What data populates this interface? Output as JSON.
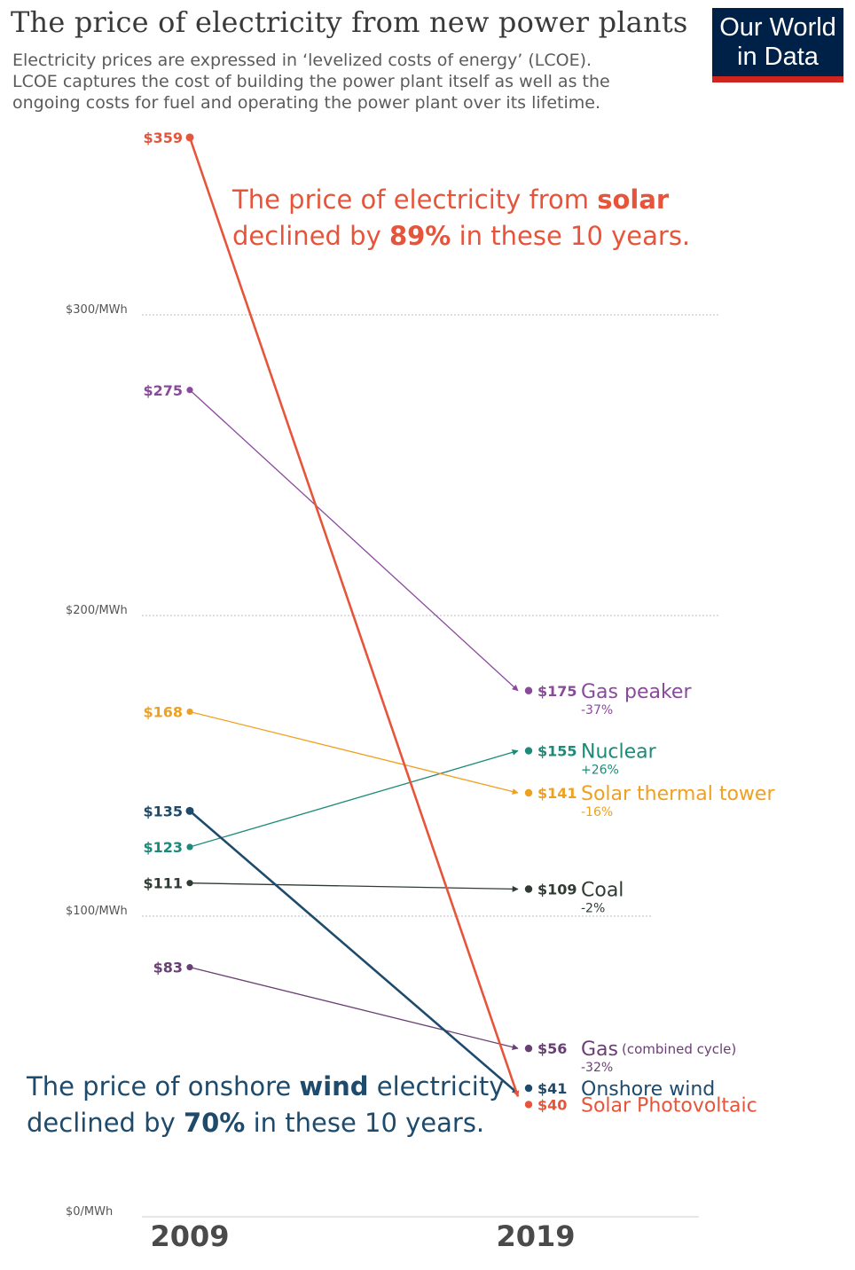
{
  "header": {
    "title": "The price of electricity from new power plants",
    "subtitle_lines": [
      "Electricity prices are expressed in ‘levelized costs of energy’ (LCOE).",
      "LCOE captures the cost of building the power plant itself as well as the",
      "ongoing costs for fuel and operating the power plant over its lifetime."
    ],
    "logo_line1": "Our World",
    "logo_line2": "in Data"
  },
  "annotations": {
    "solar_line1_pre": "The price of electricity from ",
    "solar_line1_bold": "solar",
    "solar_line2_pre": "declined by ",
    "solar_line2_bold": "89%",
    "solar_line2_post": " in these 10 years.",
    "wind_line1_pre": "The price of onshore ",
    "wind_line1_bold": "wind",
    "wind_line1_post": " electricity",
    "wind_line2_pre": "declined by ",
    "wind_line2_bold": "70%",
    "wind_line2_post": " in these 10 years."
  },
  "chart_data": {
    "type": "line",
    "x": [
      "2009",
      "2019"
    ],
    "ylim": [
      0,
      360
    ],
    "y_ticks": [
      {
        "value": 0,
        "label": "$0/MWh"
      },
      {
        "value": 100,
        "label": "$100/MWh"
      },
      {
        "value": 200,
        "label": "$200/MWh"
      },
      {
        "value": 300,
        "label": "$300/MWh"
      }
    ],
    "grid": true,
    "series": [
      {
        "name": "Gas peaker",
        "values": [
          275,
          175
        ],
        "label_2009": "$275",
        "label_2019": "$175",
        "change": "-37%",
        "color": "#8a4a9c",
        "note": ""
      },
      {
        "name": "Nuclear",
        "values": [
          123,
          155
        ],
        "label_2009": "$123",
        "label_2019": "$155",
        "change": "+26%",
        "color": "#1b8a78",
        "note": ""
      },
      {
        "name": "Solar thermal tower",
        "values": [
          168,
          141
        ],
        "label_2009": "$168",
        "label_2019": "$141",
        "change": "-16%",
        "color": "#f0a020",
        "note": ""
      },
      {
        "name": "Coal",
        "values": [
          111,
          109
        ],
        "label_2009": "$111",
        "label_2019": "$109",
        "change": "-2%",
        "color": "#2f3b33",
        "note": ""
      },
      {
        "name": "Gas",
        "values": [
          83,
          56
        ],
        "label_2009": "$83",
        "label_2019": "$56",
        "change": "-32%",
        "color": "#6a3f74",
        "note": "(combined cycle)"
      },
      {
        "name": "Onshore wind",
        "values": [
          135,
          41
        ],
        "label_2009": "$135",
        "label_2019": "$41",
        "change": "",
        "color": "#1e4a6c",
        "note": ""
      },
      {
        "name": "Solar Photovoltaic",
        "values": [
          359,
          40
        ],
        "label_2009": "$359",
        "label_2019": "$40",
        "change": "",
        "color": "#e6553b",
        "note": ""
      }
    ]
  }
}
